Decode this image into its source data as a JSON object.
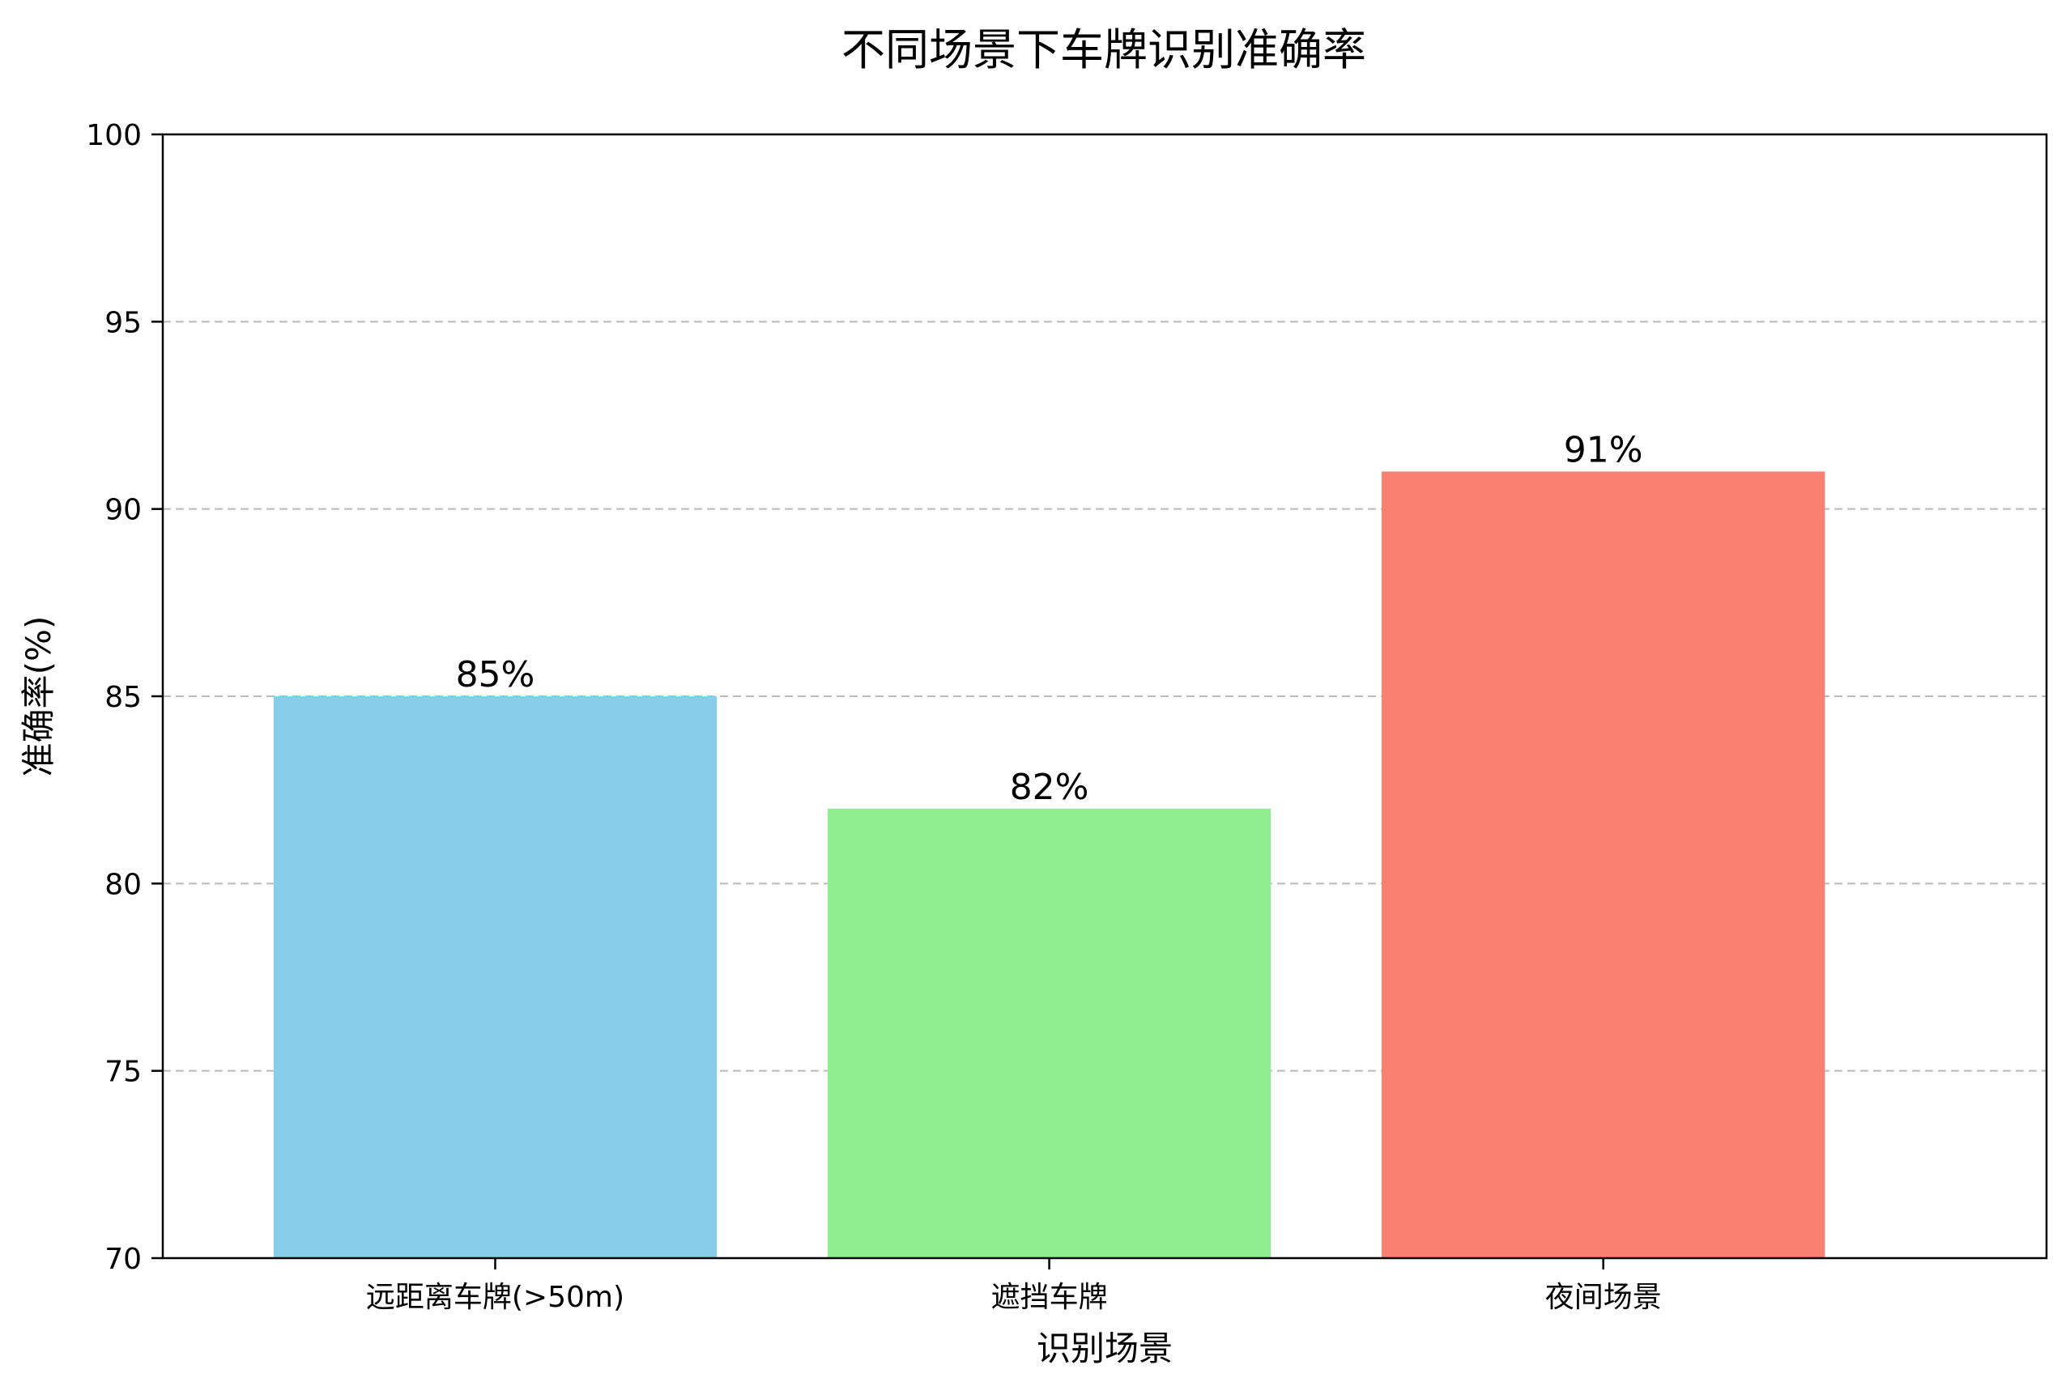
{
  "chart_data": {
    "type": "bar",
    "title": "不同场景下车牌识别准确率",
    "xlabel": "识别场景",
    "ylabel": "准确率(%)",
    "categories": [
      "远距离车牌(>50m)",
      "遮挡车牌",
      "夜间场景"
    ],
    "values": [
      85,
      82,
      91
    ],
    "value_labels": [
      "85%",
      "82%",
      "91%"
    ],
    "colors": [
      "#87ceeb",
      "#90ee90",
      "#fa8072"
    ],
    "ylim": [
      70,
      100
    ],
    "yticks": [
      70,
      75,
      80,
      85,
      90,
      95,
      100
    ],
    "grid": "y-dashed",
    "legend": "none"
  }
}
